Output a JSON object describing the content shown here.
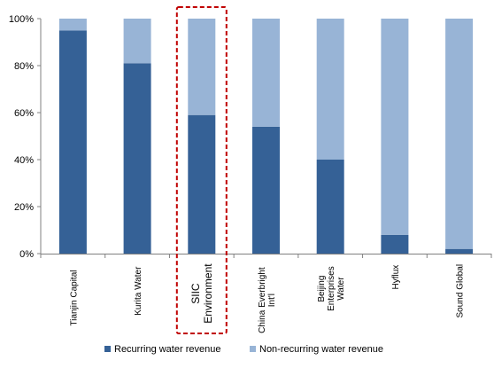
{
  "chart_data": {
    "type": "bar",
    "stacked": true,
    "percent": true,
    "categories": [
      [
        "Tianjin Capital"
      ],
      [
        "Kurita Water"
      ],
      [
        "SIIC",
        "Environment"
      ],
      [
        "China Everbright",
        "Int'l"
      ],
      [
        "Beijing",
        "Enterprises",
        "Water"
      ],
      [
        "Hyflux"
      ],
      [
        "Sound Global"
      ]
    ],
    "highlighted_category": 2,
    "series": [
      {
        "name": "Recurring water revenue",
        "color": "#356196",
        "values": [
          95,
          81,
          59,
          54,
          40,
          8,
          2
        ]
      },
      {
        "name": "Non-recurring water revenue",
        "color": "#98b4d6",
        "values": [
          5,
          19,
          41,
          46,
          60,
          92,
          98
        ]
      }
    ],
    "ylim": [
      0,
      100
    ],
    "yticks": [
      "0%",
      "20%",
      "40%",
      "60%",
      "80%",
      "100%"
    ],
    "ytick_values": [
      0,
      20,
      40,
      60,
      80,
      100
    ],
    "grid": false,
    "legend": "bottom",
    "highlight_color": "#c00000"
  }
}
